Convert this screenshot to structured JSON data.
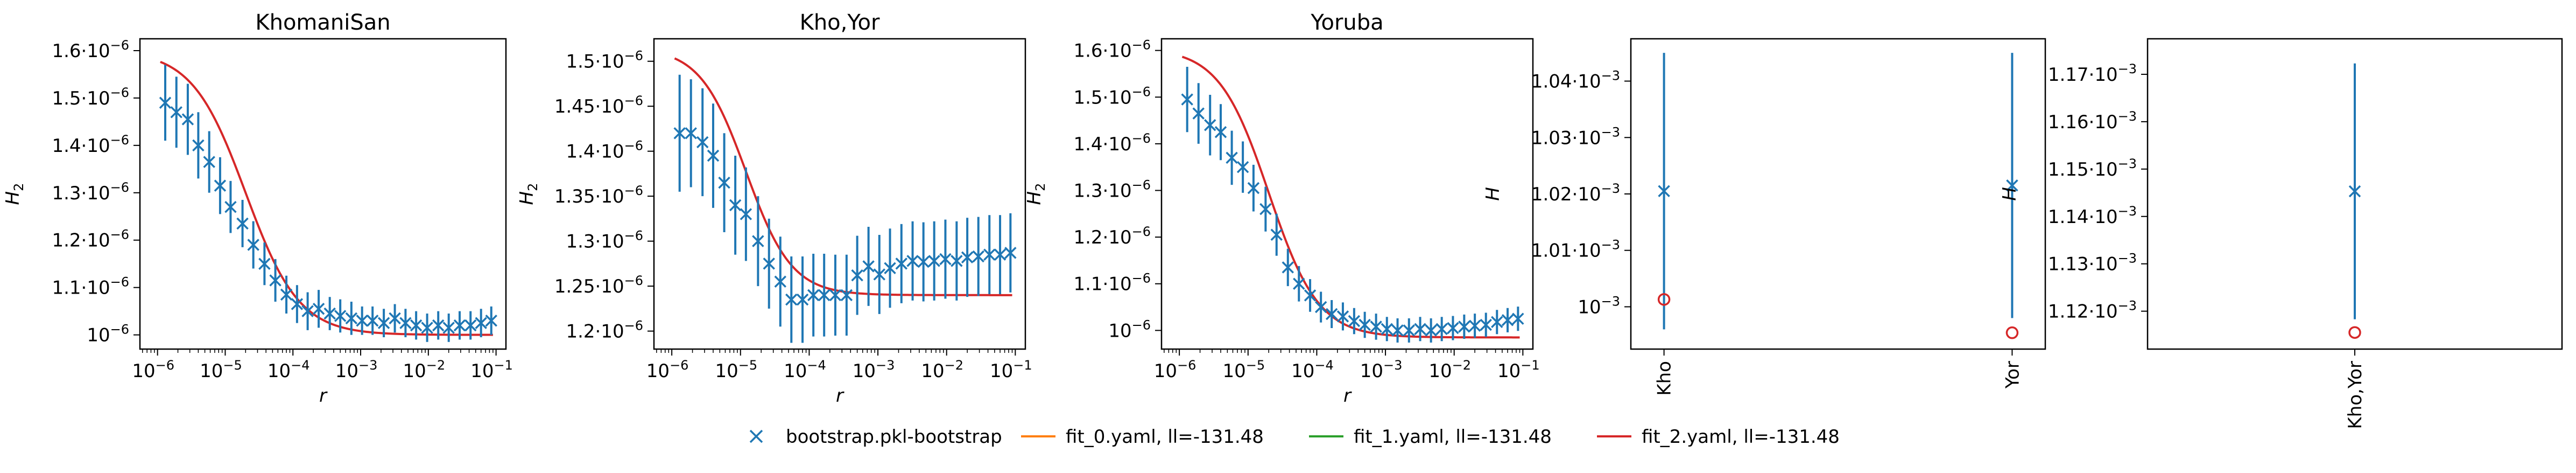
{
  "colors": {
    "data": "#1f77b4",
    "fit_0": "#ff7f0e",
    "fit_1": "#2ca02c",
    "fit_2": "#d62728",
    "axis": "#000000"
  },
  "legend": [
    {
      "label": "bootstrap.pkl-bootstrap",
      "marker": "x",
      "color": "#1f77b4"
    },
    {
      "label": "fit_0.yaml, ll=-131.48",
      "marker": "line",
      "color": "#ff7f0e"
    },
    {
      "label": "fit_1.yaml, ll=-131.48",
      "marker": "line",
      "color": "#2ca02c"
    },
    {
      "label": "fit_2.yaml, ll=-131.48",
      "marker": "line",
      "color": "#d62728"
    }
  ],
  "chart_data": [
    {
      "type": "scatter",
      "title": "KhomaniSan",
      "xlabel": "r",
      "ylabel": "H",
      "ylabel_sub": "2",
      "xscale": "log",
      "xlim": [
        5.5e-07,
        0.14
      ],
      "ylim": [
        9.7e-07,
        1.625e-06
      ],
      "xticks": [
        "10",
        "10",
        "10",
        "10",
        "10",
        "10"
      ],
      "xtick_exp": [
        "−6",
        "−5",
        "−4",
        "−3",
        "−2",
        "−1"
      ],
      "xtick_vals": [
        1e-06,
        1e-05,
        0.0001,
        0.001,
        0.01,
        0.1
      ],
      "yticks": [
        "10",
        "1.1·10",
        "1.2·10",
        "1.3·10",
        "1.4·10",
        "1.5·10",
        "1.6·10"
      ],
      "ytick_vals": [
        1e-06,
        1.1e-06,
        1.2e-06,
        1.3e-06,
        1.4e-06,
        1.5e-06,
        1.6e-06
      ],
      "ytick_exp": "−6",
      "x": [
        1.3e-06,
        1.9e-06,
        2.8e-06,
        4e-06,
        5.8e-06,
        8.4e-06,
        1.2e-05,
        1.8e-05,
        2.6e-05,
        3.8e-05,
        5.5e-05,
        8e-05,
        0.000115,
        0.000165,
        0.00024,
        0.00035,
        0.0005,
        0.00073,
        0.00105,
        0.0015,
        0.0022,
        0.0032,
        0.0046,
        0.0066,
        0.0096,
        0.014,
        0.02,
        0.029,
        0.042,
        0.06,
        0.085
      ],
      "y": [
        1.49e-06,
        1.47e-06,
        1.455e-06,
        1.4e-06,
        1.365e-06,
        1.315e-06,
        1.27e-06,
        1.235e-06,
        1.19e-06,
        1.15e-06,
        1.115e-06,
        1.085e-06,
        1.065e-06,
        1.05e-06,
        1.055e-06,
        1.045e-06,
        1.04e-06,
        1.035e-06,
        1.03e-06,
        1.03e-06,
        1.025e-06,
        1.035e-06,
        1.025e-06,
        1.02e-06,
        1.015e-06,
        1.02e-06,
        1.015e-06,
        1.02e-06,
        1.02e-06,
        1.025e-06,
        1.03e-06
      ],
      "err": [
        8e-08,
        7.5e-08,
        7.5e-08,
        7e-08,
        6.5e-08,
        6e-08,
        5.5e-08,
        5e-08,
        5e-08,
        4.5e-08,
        4.5e-08,
        4e-08,
        4e-08,
        4e-08,
        4e-08,
        3.5e-08,
        3.5e-08,
        3.5e-08,
        3e-08,
        3e-08,
        3e-08,
        3e-08,
        3e-08,
        3e-08,
        3e-08,
        3e-08,
        3e-08,
        3e-08,
        3e-08,
        3e-08,
        3e-08
      ],
      "fit": {
        "hi": 1.6e-06,
        "lo": 1e-06,
        "mid": 2e-05,
        "k": 1.1
      }
    },
    {
      "type": "scatter",
      "title": "Kho,Yor",
      "xlabel": "r",
      "ylabel": "H",
      "ylabel_sub": "2",
      "xscale": "log",
      "xlim": [
        5.5e-07,
        0.14
      ],
      "ylim": [
        1.18e-06,
        1.525e-06
      ],
      "xticks": [
        "10",
        "10",
        "10",
        "10",
        "10",
        "10"
      ],
      "xtick_exp": [
        "−6",
        "−5",
        "−4",
        "−3",
        "−2",
        "−1"
      ],
      "xtick_vals": [
        1e-06,
        1e-05,
        0.0001,
        0.001,
        0.01,
        0.1
      ],
      "yticks": [
        "1.2·10",
        "1.25·10",
        "1.3·10",
        "1.35·10",
        "1.4·10",
        "1.45·10",
        "1.5·10"
      ],
      "ytick_vals": [
        1.2e-06,
        1.25e-06,
        1.3e-06,
        1.35e-06,
        1.4e-06,
        1.45e-06,
        1.5e-06
      ],
      "ytick_exp": "−6",
      "x": [
        1.3e-06,
        1.9e-06,
        2.8e-06,
        4e-06,
        5.8e-06,
        8.4e-06,
        1.2e-05,
        1.8e-05,
        2.6e-05,
        3.8e-05,
        5.5e-05,
        8e-05,
        0.000115,
        0.000165,
        0.00024,
        0.00035,
        0.0005,
        0.00073,
        0.00105,
        0.0015,
        0.0022,
        0.0032,
        0.0046,
        0.0066,
        0.0096,
        0.014,
        0.02,
        0.029,
        0.042,
        0.06,
        0.085
      ],
      "y": [
        1.42e-06,
        1.42e-06,
        1.41e-06,
        1.395e-06,
        1.365e-06,
        1.34e-06,
        1.33e-06,
        1.3e-06,
        1.275e-06,
        1.255e-06,
        1.235e-06,
        1.235e-06,
        1.24e-06,
        1.24e-06,
        1.24e-06,
        1.24e-06,
        1.262e-06,
        1.272e-06,
        1.263e-06,
        1.27e-06,
        1.275e-06,
        1.278e-06,
        1.277e-06,
        1.278e-06,
        1.28e-06,
        1.278e-06,
        1.282e-06,
        1.283e-06,
        1.285e-06,
        1.285e-06,
        1.287e-06
      ],
      "err": [
        6.5e-08,
        6e-08,
        6e-08,
        5.8e-08,
        5.5e-08,
        5.5e-08,
        5.2e-08,
        5e-08,
        5e-08,
        5e-08,
        4.8e-08,
        4.8e-08,
        4.6e-08,
        4.6e-08,
        4.5e-08,
        4.5e-08,
        4.4e-08,
        4.4e-08,
        4.4e-08,
        4.4e-08,
        4.4e-08,
        4.4e-08,
        4.4e-08,
        4.4e-08,
        4.4e-08,
        4.4e-08,
        4.4e-08,
        4.4e-08,
        4.4e-08,
        4.4e-08,
        4.4e-08
      ],
      "fit": {
        "hi": 1.515e-06,
        "lo": 1.24e-06,
        "mid": 1.2e-05,
        "k": 1.3
      }
    },
    {
      "type": "scatter",
      "title": "Yoruba",
      "xlabel": "r",
      "ylabel": "H",
      "ylabel_sub": "2",
      "xscale": "log",
      "xlim": [
        5.5e-07,
        0.14
      ],
      "ylim": [
        9.6e-07,
        1.625e-06
      ],
      "xticks": [
        "10",
        "10",
        "10",
        "10",
        "10",
        "10"
      ],
      "xtick_exp": [
        "−6",
        "−5",
        "−4",
        "−3",
        "−2",
        "−1"
      ],
      "xtick_vals": [
        1e-06,
        1e-05,
        0.0001,
        0.001,
        0.01,
        0.1
      ],
      "yticks": [
        "10",
        "1.1·10",
        "1.2·10",
        "1.3·10",
        "1.4·10",
        "1.5·10",
        "1.6·10"
      ],
      "ytick_vals": [
        1e-06,
        1.1e-06,
        1.2e-06,
        1.3e-06,
        1.4e-06,
        1.5e-06,
        1.6e-06
      ],
      "ytick_exp": "−6",
      "x": [
        1.3e-06,
        1.9e-06,
        2.8e-06,
        4e-06,
        5.8e-06,
        8.4e-06,
        1.2e-05,
        1.8e-05,
        2.6e-05,
        3.8e-05,
        5.5e-05,
        8e-05,
        0.000115,
        0.000165,
        0.00024,
        0.00035,
        0.0005,
        0.00073,
        0.00105,
        0.0015,
        0.0022,
        0.0032,
        0.0046,
        0.0066,
        0.0096,
        0.014,
        0.02,
        0.029,
        0.042,
        0.06,
        0.085
      ],
      "y": [
        1.495e-06,
        1.465e-06,
        1.44e-06,
        1.425e-06,
        1.37e-06,
        1.35e-06,
        1.305e-06,
        1.26e-06,
        1.205e-06,
        1.135e-06,
        1.1e-06,
        1.075e-06,
        1.05e-06,
        1.035e-06,
        1.03e-06,
        1.02e-06,
        1.012e-06,
        1.008e-06,
        1.003e-06,
        1e-06,
        1e-06,
        1.003e-06,
        1e-06,
        1.003e-06,
        1.005e-06,
        1.008e-06,
        1.01e-06,
        1.012e-06,
        1.018e-06,
        1.022e-06,
        1.025e-06
      ],
      "err": [
        7e-08,
        6.5e-08,
        6.5e-08,
        6e-08,
        5.8e-08,
        5.5e-08,
        5e-08,
        4.8e-08,
        4.5e-08,
        4e-08,
        3.8e-08,
        3.5e-08,
        3.3e-08,
        3e-08,
        3e-08,
        2.8e-08,
        2.8e-08,
        2.8e-08,
        2.6e-08,
        2.6e-08,
        2.6e-08,
        2.6e-08,
        2.6e-08,
        2.6e-08,
        2.6e-08,
        2.6e-08,
        2.6e-08,
        2.6e-08,
        2.6e-08,
        2.6e-08,
        2.6e-08
      ],
      "fit": {
        "hi": 1.605e-06,
        "lo": 9.85e-07,
        "mid": 2e-05,
        "k": 1.2
      }
    },
    {
      "type": "scatter",
      "title": "",
      "xlabel": "",
      "ylabel": "H",
      "ylabel_sub": "",
      "xscale": "category",
      "categories": [
        "Kho",
        "Yor"
      ],
      "ylim": [
        0.0009925,
        0.0010475
      ],
      "yticks": [
        "10",
        "1.01·10",
        "1.02·10",
        "1.03·10",
        "1.04·10"
      ],
      "ytick_vals": [
        0.001,
        0.00101,
        0.00102,
        0.00103,
        0.00104
      ],
      "ytick_exp": "−3",
      "y": [
        0.0010205,
        0.0010215
      ],
      "err": [
        2.45e-05,
        2.35e-05
      ],
      "fit_points": [
        0.0010013,
        0.0009954
      ]
    },
    {
      "type": "scatter",
      "title": "",
      "xlabel": "",
      "ylabel": "H",
      "ylabel_sub": "",
      "xscale": "category",
      "categories": [
        "Kho,Yor"
      ],
      "ylim": [
        0.001112,
        0.0011775
      ],
      "yticks": [
        "1.12·10",
        "1.13·10",
        "1.14·10",
        "1.15·10",
        "1.16·10",
        "1.17·10"
      ],
      "ytick_vals": [
        0.00112,
        0.00113,
        0.00114,
        0.00115,
        0.00116,
        0.00117
      ],
      "ytick_exp": "−3",
      "y": [
        0.0011453
      ],
      "err": [
        2.7e-05
      ],
      "fit_points": [
        0.0011155
      ]
    }
  ]
}
